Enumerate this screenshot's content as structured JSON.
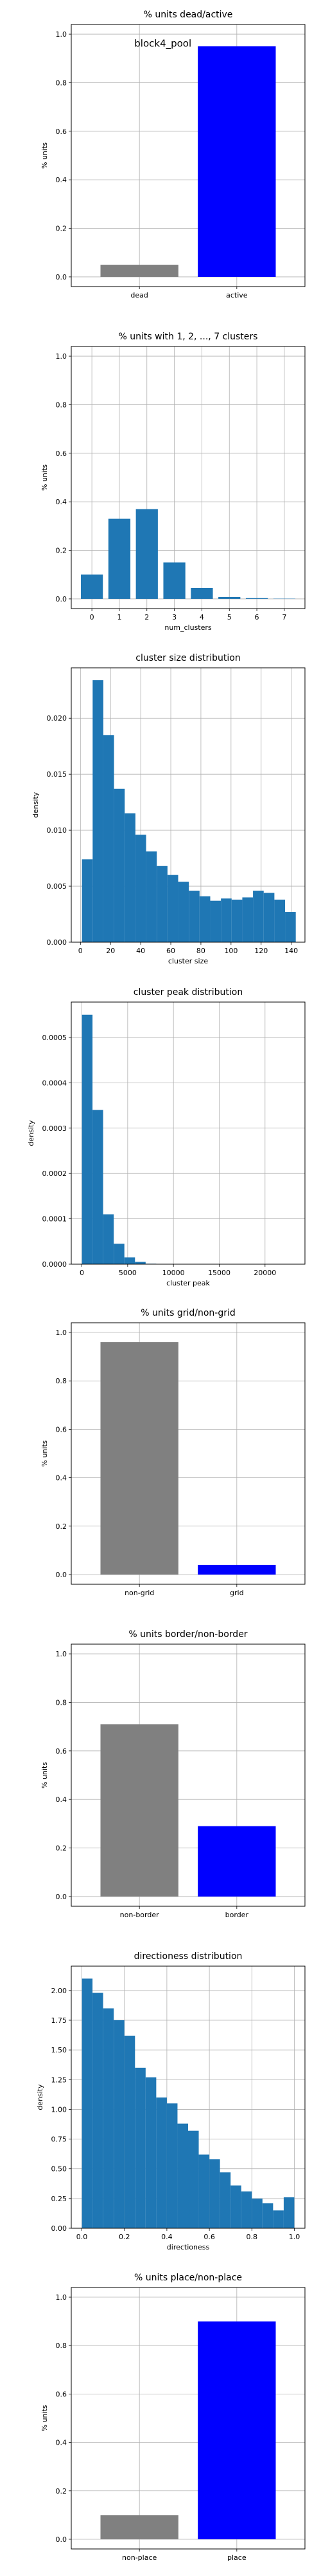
{
  "chart_data": [
    {
      "type": "bar",
      "title": "% units dead/active",
      "xlabel": "",
      "ylabel": "% units",
      "annotation": "block4_pool",
      "categories": [
        "dead",
        "active"
      ],
      "values": [
        0.05,
        0.95
      ],
      "colors": [
        "#808080",
        "#0000ff"
      ],
      "ylim": [
        -0.04,
        1.04
      ],
      "yticks": [
        0.0,
        0.2,
        0.4,
        0.6,
        0.8,
        1.0
      ],
      "ytick_labels": [
        "0.0",
        "0.2",
        "0.4",
        "0.6",
        "0.8",
        "1.0"
      ],
      "grid": true
    },
    {
      "type": "bar",
      "title": "% units with 1, 2, ..., 7 clusters",
      "xlabel": "num_clusters",
      "ylabel": "% units",
      "x": [
        0,
        1,
        2,
        3,
        4,
        5,
        6,
        7
      ],
      "values": [
        0.1,
        0.33,
        0.37,
        0.15,
        0.045,
        0.008,
        0.003,
        0.001
      ],
      "bar_width": 0.8,
      "color": "#1f77b4",
      "xlim": [
        -0.75,
        7.75
      ],
      "ylim": [
        -0.04,
        1.04
      ],
      "xticks": [
        0,
        1,
        2,
        3,
        4,
        5,
        6,
        7
      ],
      "xtick_labels": [
        "0",
        "1",
        "2",
        "3",
        "4",
        "5",
        "6",
        "7"
      ],
      "yticks": [
        0.0,
        0.2,
        0.4,
        0.6,
        0.8,
        1.0
      ],
      "ytick_labels": [
        "0.0",
        "0.2",
        "0.4",
        "0.6",
        "0.8",
        "1.0"
      ],
      "grid": true
    },
    {
      "type": "histogram",
      "title": "cluster size distribution",
      "xlabel": "cluster size",
      "ylabel": "density",
      "bin_start": 1,
      "bin_width": 7.1,
      "values": [
        0.0074,
        0.0234,
        0.0185,
        0.0137,
        0.0115,
        0.0096,
        0.0081,
        0.0068,
        0.006,
        0.0054,
        0.0046,
        0.0041,
        0.0037,
        0.0039,
        0.0038,
        0.004,
        0.0046,
        0.0044,
        0.0038,
        0.0027
      ],
      "color": "#1f77b4",
      "xlim": [
        -6.1,
        149.1
      ],
      "ylim": [
        0,
        0.0245
      ],
      "xticks": [
        0,
        20,
        40,
        60,
        80,
        100,
        120,
        140
      ],
      "xtick_labels": [
        "0",
        "20",
        "40",
        "60",
        "80",
        "100",
        "120",
        "140"
      ],
      "yticks": [
        0,
        0.005,
        0.01,
        0.015,
        0.02
      ],
      "ytick_labels": [
        "0.000",
        "0.005",
        "0.010",
        "0.015",
        "0.020"
      ],
      "grid": true
    },
    {
      "type": "histogram",
      "title": "cluster peak distribution",
      "xlabel": "cluster peak",
      "ylabel": "density",
      "bin_start": 0,
      "bin_width": 1160,
      "values": [
        0.00055,
        0.00034,
        0.00011,
        4.5e-05,
        1.5e-05,
        5e-06,
        1e-06,
        5e-07,
        5e-07,
        5e-07,
        3e-07,
        3e-07,
        2e-07,
        2e-07,
        1e-07,
        1e-07,
        1e-07,
        1e-07,
        1e-07,
        1e-07
      ],
      "color": "#1f77b4",
      "xlim": [
        -1160,
        24360
      ],
      "ylim": [
        0,
        0.000578
      ],
      "xticks": [
        0,
        5000,
        10000,
        15000,
        20000
      ],
      "xtick_labels": [
        "0",
        "5000",
        "10000",
        "15000",
        "20000"
      ],
      "yticks": [
        0,
        0.0001,
        0.0002,
        0.0003,
        0.0004,
        0.0005
      ],
      "ytick_labels": [
        "0.0000",
        "0.0001",
        "0.0002",
        "0.0003",
        "0.0004",
        "0.0005"
      ],
      "grid": true
    },
    {
      "type": "bar",
      "title": "% units grid/non-grid",
      "xlabel": "",
      "ylabel": "% units",
      "categories": [
        "non-grid",
        "grid"
      ],
      "values": [
        0.96,
        0.04
      ],
      "colors": [
        "#808080",
        "#0000ff"
      ],
      "ylim": [
        -0.04,
        1.04
      ],
      "yticks": [
        0.0,
        0.2,
        0.4,
        0.6,
        0.8,
        1.0
      ],
      "ytick_labels": [
        "0.0",
        "0.2",
        "0.4",
        "0.6",
        "0.8",
        "1.0"
      ],
      "grid": true
    },
    {
      "type": "bar",
      "title": "% units border/non-border",
      "xlabel": "",
      "ylabel": "% units",
      "categories": [
        "non-border",
        "border"
      ],
      "values": [
        0.71,
        0.29
      ],
      "colors": [
        "#808080",
        "#0000ff"
      ],
      "ylim": [
        -0.04,
        1.04
      ],
      "yticks": [
        0.0,
        0.2,
        0.4,
        0.6,
        0.8,
        1.0
      ],
      "ytick_labels": [
        "0.0",
        "0.2",
        "0.4",
        "0.6",
        "0.8",
        "1.0"
      ],
      "grid": true
    },
    {
      "type": "histogram",
      "title": "directioness distribution",
      "xlabel": "directioness",
      "ylabel": "density",
      "bin_start": 0,
      "bin_width": 0.05,
      "values": [
        2.1,
        1.98,
        1.85,
        1.75,
        1.62,
        1.35,
        1.27,
        1.1,
        1.05,
        0.88,
        0.82,
        0.62,
        0.58,
        0.47,
        0.36,
        0.31,
        0.25,
        0.21,
        0.15,
        0.26
      ],
      "color": "#1f77b4",
      "xlim": [
        -0.05,
        1.05
      ],
      "ylim": [
        0,
        2.205
      ],
      "xticks": [
        0,
        0.2,
        0.4,
        0.6,
        0.8,
        1.0
      ],
      "xtick_labels": [
        "0.0",
        "0.2",
        "0.4",
        "0.6",
        "0.8",
        "1.0"
      ],
      "yticks": [
        0,
        0.25,
        0.5,
        0.75,
        1.0,
        1.25,
        1.5,
        1.75,
        2.0
      ],
      "ytick_labels": [
        "0.00",
        "0.25",
        "0.50",
        "0.75",
        "1.00",
        "1.25",
        "1.50",
        "1.75",
        "2.00"
      ],
      "grid": true
    },
    {
      "type": "bar",
      "title": "% units place/non-place",
      "xlabel": "",
      "ylabel": "% units",
      "categories": [
        "non-place",
        "place"
      ],
      "values": [
        0.1,
        0.9
      ],
      "colors": [
        "#808080",
        "#0000ff"
      ],
      "ylim": [
        -0.04,
        1.04
      ],
      "yticks": [
        0.0,
        0.2,
        0.4,
        0.6,
        0.8,
        1.0
      ],
      "ytick_labels": [
        "0.0",
        "0.2",
        "0.4",
        "0.6",
        "0.8",
        "1.0"
      ],
      "grid": true
    }
  ]
}
